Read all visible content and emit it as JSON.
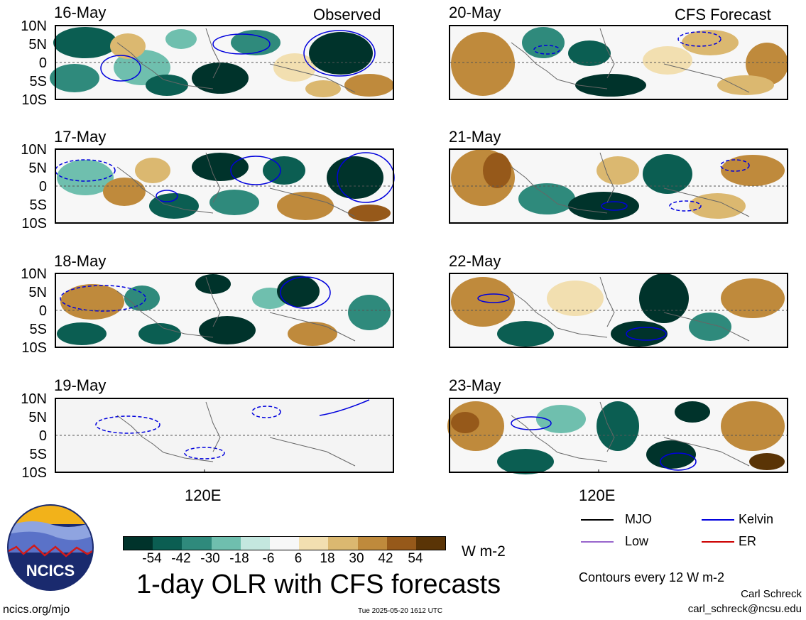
{
  "header": {
    "observed_label": "Observed",
    "forecast_label": "CFS Forecast"
  },
  "lat_labels": [
    "10N",
    "5N",
    "0",
    "5S",
    "10S"
  ],
  "lon_label": "120E",
  "panels": {
    "observed": [
      {
        "date": "16-May"
      },
      {
        "date": "17-May"
      },
      {
        "date": "18-May"
      },
      {
        "date": "19-May"
      }
    ],
    "forecast": [
      {
        "date": "20-May"
      },
      {
        "date": "21-May"
      },
      {
        "date": "22-May"
      },
      {
        "date": "23-May"
      }
    ]
  },
  "colorbar": {
    "labels": [
      "-54",
      "-42",
      "-30",
      "-18",
      "-6",
      "6",
      "18",
      "30",
      "42",
      "54"
    ],
    "units": "W m-2",
    "colors": [
      "#00332b",
      "#0b5e52",
      "#2f8a7c",
      "#6fbfae",
      "#c4e7df",
      "#f7f7f7",
      "#f2dfb0",
      "#dbb870",
      "#bf8a3c",
      "#96591a",
      "#5a3406"
    ]
  },
  "title": "1-day OLR with CFS forecasts",
  "legend": {
    "items": [
      {
        "label": "MJO",
        "color": "#000000"
      },
      {
        "label": "Kelvin",
        "color": "#0000dd"
      },
      {
        "label": "Low",
        "color": "#9966cc"
      },
      {
        "label": "ER",
        "color": "#cc0000"
      }
    ],
    "contours_note": "Contours every 12 W m-2"
  },
  "logo": {
    "text": "NCICS"
  },
  "footer": {
    "url": "ncics.org/mjo",
    "timestamp": "Tue 2025-05-20 1612 UTC",
    "author": "Carl Schreck",
    "email": "carl_schreck@ncsu.edu"
  }
}
